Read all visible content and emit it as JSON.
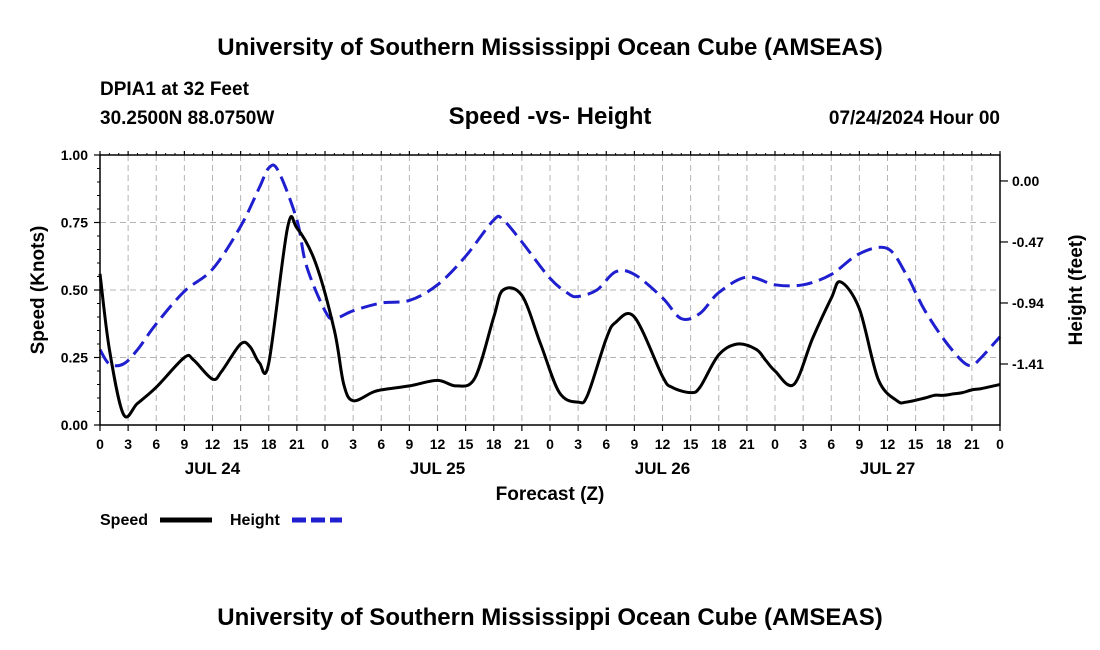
{
  "header": {
    "title": "University of Southern Mississippi Ocean Cube (AMSEAS)",
    "station": "DPIA1 at 32 Feet",
    "location": "30.2500N  88.0750W",
    "chart_title": "Speed -vs- Height",
    "datetime": "07/24/2024 Hour 00"
  },
  "footer": {
    "title": "University of Southern Mississippi Ocean Cube (AMSEAS)"
  },
  "chart_data": {
    "type": "line",
    "title": "Speed -vs- Height",
    "xlabel": "Forecast (Z)",
    "ylabel": "Speed (Knots)",
    "y2label": "Height (feet)",
    "x_unit": "forecast hour",
    "xlim": [
      0,
      96
    ],
    "ylim": [
      0,
      1
    ],
    "y2lim": [
      -1.88,
      0.2
    ],
    "grid": true,
    "x_ticks": [
      0,
      3,
      6,
      9,
      12,
      15,
      18,
      21,
      24,
      27,
      30,
      33,
      36,
      39,
      42,
      45,
      48,
      51,
      54,
      57,
      60,
      63,
      66,
      69,
      72,
      75,
      78,
      81,
      84,
      87,
      90,
      93,
      96
    ],
    "x_tick_labels": [
      "0",
      "3",
      "6",
      "9",
      "12",
      "15",
      "18",
      "21",
      "0",
      "3",
      "6",
      "9",
      "12",
      "15",
      "18",
      "21",
      "0",
      "3",
      "6",
      "9",
      "12",
      "15",
      "18",
      "21",
      "0",
      "3",
      "6",
      "9",
      "12",
      "15",
      "18",
      "21",
      "0"
    ],
    "y_ticks": [
      0,
      0.25,
      0.5,
      0.75,
      1.0
    ],
    "y_tick_labels": [
      "0.00",
      "0.25",
      "0.50",
      "0.75",
      "1.00"
    ],
    "y2_ticks": [
      0.0,
      -0.47,
      -0.94,
      -1.41
    ],
    "y2_tick_labels": [
      "0.00",
      "-0.47",
      "-0.94",
      "-1.41"
    ],
    "day_labels": [
      {
        "x": 12,
        "label": "JUL 24"
      },
      {
        "x": 36,
        "label": "JUL 25"
      },
      {
        "x": 60,
        "label": "JUL 26"
      },
      {
        "x": 84,
        "label": "JUL 27"
      }
    ],
    "series": [
      {
        "name": "Speed",
        "axis": "left",
        "color": "#000000",
        "dash": "solid",
        "x": [
          0,
          1,
          2.5,
          4,
          6,
          9,
          10,
          12,
          13,
          15,
          16,
          17,
          18,
          20,
          21,
          23,
          25,
          26,
          27,
          29,
          30,
          33,
          36,
          38,
          40,
          42,
          43,
          45,
          47,
          49,
          51,
          52,
          54,
          55,
          57,
          60,
          61,
          63,
          64,
          66,
          68,
          70,
          71,
          72,
          74,
          76,
          78,
          79,
          81,
          83,
          85,
          86,
          88,
          89,
          90,
          91,
          92,
          93,
          94,
          96
        ],
        "values": [
          0.56,
          0.28,
          0.04,
          0.08,
          0.14,
          0.25,
          0.24,
          0.17,
          0.2,
          0.3,
          0.29,
          0.23,
          0.23,
          0.73,
          0.73,
          0.6,
          0.35,
          0.15,
          0.09,
          0.12,
          0.13,
          0.145,
          0.165,
          0.145,
          0.175,
          0.4,
          0.5,
          0.48,
          0.3,
          0.12,
          0.085,
          0.11,
          0.32,
          0.38,
          0.4,
          0.18,
          0.14,
          0.12,
          0.14,
          0.26,
          0.3,
          0.28,
          0.24,
          0.2,
          0.15,
          0.32,
          0.47,
          0.53,
          0.43,
          0.17,
          0.09,
          0.085,
          0.1,
          0.11,
          0.11,
          0.115,
          0.12,
          0.13,
          0.135,
          0.15
        ]
      },
      {
        "name": "Height",
        "axis": "right",
        "color": "#1f1fcf",
        "dash": "dashed",
        "x": [
          0,
          1,
          2.5,
          4,
          6,
          9,
          12,
          15,
          17,
          18,
          19,
          21,
          22,
          24,
          25,
          27,
          30,
          33,
          36,
          39,
          42,
          43,
          45,
          48,
          50,
          51,
          53,
          55,
          57,
          60,
          62,
          64,
          66,
          69,
          72,
          75,
          78,
          81,
          84,
          86,
          87,
          88,
          90,
          92,
          93,
          94,
          96
        ],
        "values": [
          -1.3,
          -1.41,
          -1.41,
          -1.3,
          -1.1,
          -0.85,
          -0.68,
          -0.35,
          -0.05,
          0.1,
          0.08,
          -0.3,
          -0.65,
          -1.0,
          -1.06,
          -1.0,
          -0.94,
          -0.92,
          -0.8,
          -0.58,
          -0.3,
          -0.3,
          -0.47,
          -0.75,
          -0.87,
          -0.89,
          -0.84,
          -0.7,
          -0.72,
          -0.9,
          -1.06,
          -1.02,
          -0.86,
          -0.74,
          -0.8,
          -0.8,
          -0.72,
          -0.56,
          -0.52,
          -0.72,
          -0.86,
          -1.0,
          -1.22,
          -1.39,
          -1.42,
          -1.36,
          -1.2
        ]
      }
    ],
    "legend": [
      {
        "label": "Speed",
        "color": "#000000",
        "dash": "solid"
      },
      {
        "label": "Height",
        "color": "#1f1fcf",
        "dash": "dashed"
      }
    ],
    "legend_position": "bottom-left"
  }
}
